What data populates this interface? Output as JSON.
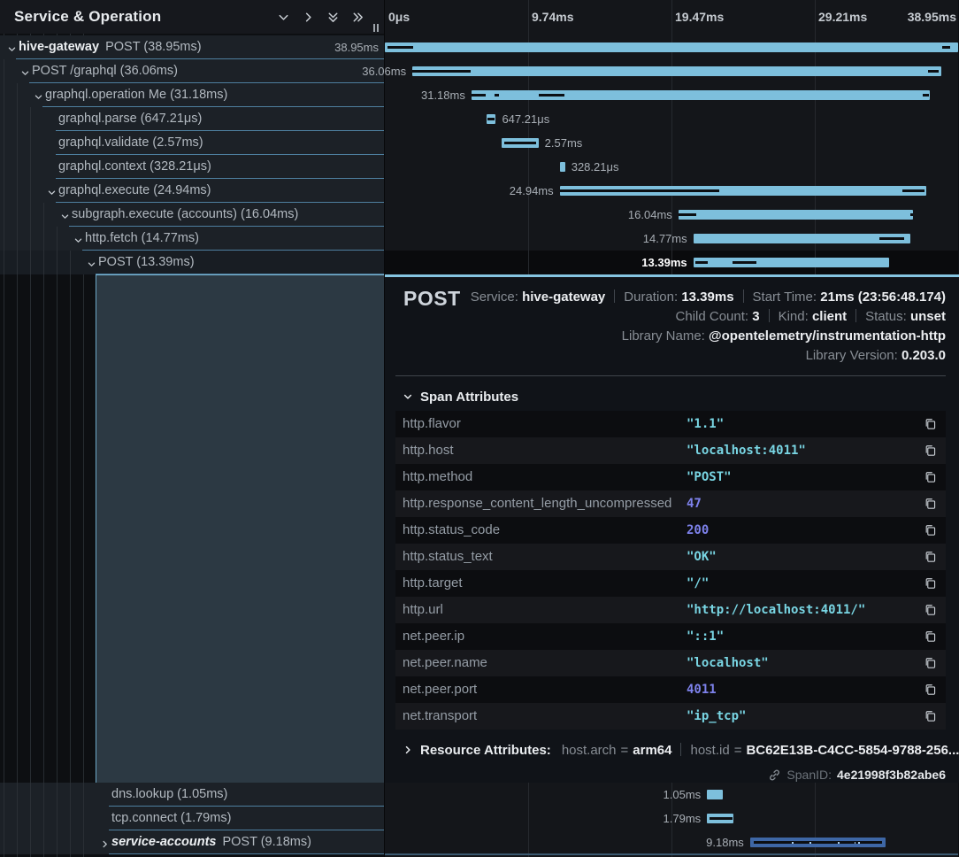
{
  "header": {
    "title": "Service & Operation",
    "icons": [
      "collapse-one-icon",
      "expand-one-icon",
      "collapse-all-icon",
      "expand-all-icon"
    ]
  },
  "timeline": {
    "ticks": [
      {
        "label": "0μs",
        "pos": 0
      },
      {
        "label": "9.74ms",
        "pos": 0.25
      },
      {
        "label": "19.47ms",
        "pos": 0.5
      },
      {
        "label": "29.21ms",
        "pos": 0.75
      },
      {
        "label": "38.95ms",
        "pos": 1
      }
    ]
  },
  "colors": {
    "bar_default": "#7dbfdc",
    "bar_alt_service": "#3e67a6",
    "row_border": "#4e7f9f",
    "panel_accent": "#86c5e1",
    "string_value": "#79d6e4",
    "number_value": "#7e82ec"
  },
  "spans": [
    {
      "service": "hive-gateway",
      "italic": false,
      "label": "POST (38.95ms)",
      "depth": 0,
      "chevron": "down",
      "selected": false,
      "after_detail": false,
      "bar": {
        "start": 0.0,
        "width": 1.0,
        "label": "38.95ms",
        "segments": [
          [
            0.005,
            0.045
          ],
          [
            0.972,
            0.014
          ]
        ]
      }
    },
    {
      "service": null,
      "label": "POST /graphql (36.06ms)",
      "depth": 1,
      "chevron": "down",
      "selected": false,
      "after_detail": false,
      "bar": {
        "start": 0.048,
        "width": 0.922,
        "label": "36.06ms",
        "segments": [
          [
            0.0,
            0.11
          ],
          [
            0.975,
            0.02
          ]
        ]
      }
    },
    {
      "service": null,
      "label": "graphql.operation Me (31.18ms)",
      "depth": 2,
      "chevron": "down",
      "selected": false,
      "after_detail": false,
      "bar": {
        "start": 0.151,
        "width": 0.8,
        "label": "31.18ms",
        "segments": [
          [
            0.0,
            0.032
          ],
          [
            0.05,
            0.01
          ],
          [
            0.147,
            0.055
          ],
          [
            0.985,
            0.012
          ]
        ]
      }
    },
    {
      "service": null,
      "label": "graphql.parse (647.21μs)",
      "depth": 3,
      "chevron": null,
      "selected": false,
      "after_detail": false,
      "bar": {
        "start": 0.177,
        "width": 0.0166,
        "label": "647.21μs",
        "segments": [
          [
            0.15,
            0.7
          ]
        ]
      }
    },
    {
      "service": null,
      "label": "graphql.validate (2.57ms)",
      "depth": 3,
      "chevron": null,
      "selected": false,
      "after_detail": false,
      "bar": {
        "start": 0.204,
        "width": 0.064,
        "label": "2.57ms",
        "segments": [
          [
            0.06,
            0.88
          ]
        ]
      }
    },
    {
      "service": null,
      "label": "graphql.context (328.21μs)",
      "depth": 3,
      "chevron": null,
      "selected": false,
      "after_detail": false,
      "bar": {
        "start": 0.306,
        "width": 0.0084,
        "label": "328.21μs",
        "segments": []
      }
    },
    {
      "service": null,
      "label": "graphql.execute (24.94ms)",
      "depth": 3,
      "chevron": "down",
      "selected": false,
      "after_detail": false,
      "bar": {
        "start": 0.305,
        "width": 0.639,
        "label": "24.94ms",
        "segments": [
          [
            0.0,
            0.435
          ],
          [
            0.935,
            0.06
          ]
        ]
      }
    },
    {
      "service": null,
      "label": "subgraph.execute (accounts) (16.04ms)",
      "depth": 4,
      "chevron": "down",
      "selected": false,
      "after_detail": false,
      "bar": {
        "start": 0.512,
        "width": 0.409,
        "label": "16.04ms",
        "segments": [
          [
            0.0,
            0.075
          ],
          [
            0.99,
            0.01
          ]
        ]
      }
    },
    {
      "service": null,
      "label": "http.fetch (14.77ms)",
      "depth": 5,
      "chevron": "down",
      "selected": false,
      "after_detail": false,
      "bar": {
        "start": 0.538,
        "width": 0.378,
        "label": "14.77ms",
        "segments": [
          [
            0.86,
            0.115
          ]
        ]
      }
    },
    {
      "service": null,
      "label": "POST (13.39ms)",
      "depth": 6,
      "chevron": "down",
      "selected": true,
      "after_detail": false,
      "bar": {
        "start": 0.538,
        "width": 0.341,
        "label": "13.39ms",
        "segments": [
          [
            0.012,
            0.062
          ],
          [
            0.2,
            0.125
          ]
        ]
      }
    },
    {
      "service": null,
      "label": "dns.lookup (1.05ms)",
      "depth": 7,
      "chevron": null,
      "selected": false,
      "after_detail": true,
      "bar": {
        "start": 0.562,
        "width": 0.028,
        "label": "1.05ms",
        "segments": []
      }
    },
    {
      "service": null,
      "label": "tcp.connect (1.79ms)",
      "depth": 7,
      "chevron": null,
      "selected": false,
      "after_detail": true,
      "bar": {
        "start": 0.562,
        "width": 0.046,
        "label": "1.79ms",
        "segments": [
          [
            0.09,
            0.89
          ]
        ]
      }
    },
    {
      "service": "service-accounts",
      "italic": true,
      "label": "POST (9.18ms)",
      "depth": 7,
      "chevron": "right",
      "selected": false,
      "after_detail": true,
      "bar": {
        "start": 0.637,
        "width": 0.236,
        "label": "9.18ms",
        "color": "#3e67a6",
        "segments": [
          [
            0.025,
            0.95
          ]
        ],
        "dots": [
          [
            0.31,
            0.013
          ],
          [
            0.44,
            0.01
          ],
          [
            0.65,
            0.013
          ],
          [
            0.77,
            0.01
          ],
          [
            0.8,
            0.01
          ]
        ]
      }
    }
  ],
  "detail": {
    "title": "POST",
    "meta_lines": [
      [
        {
          "k": "Service:",
          "v": "hive-gateway"
        },
        {
          "k": "Duration:",
          "v": "13.39ms"
        },
        {
          "k": "Start Time:",
          "v": "21ms (23:56:48.174)"
        }
      ],
      [
        {
          "k": "Child Count:",
          "v": "3"
        },
        {
          "k": "Kind:",
          "v": "client"
        },
        {
          "k": "Status:",
          "v": "unset"
        }
      ],
      [
        {
          "k": "Library Name:",
          "v": "@opentelemetry/instrumentation-http"
        }
      ],
      [
        {
          "k": "Library Version:",
          "v": "0.203.0"
        }
      ]
    ],
    "attributes_title": "Span Attributes",
    "attributes": [
      {
        "key": "http.flavor",
        "value": "\"1.1\"",
        "type": "string"
      },
      {
        "key": "http.host",
        "value": "\"localhost:4011\"",
        "type": "string"
      },
      {
        "key": "http.method",
        "value": "\"POST\"",
        "type": "string"
      },
      {
        "key": "http.response_content_length_uncompressed",
        "value": "47",
        "type": "number"
      },
      {
        "key": "http.status_code",
        "value": "200",
        "type": "number"
      },
      {
        "key": "http.status_text",
        "value": "\"OK\"",
        "type": "string"
      },
      {
        "key": "http.target",
        "value": "\"/\"",
        "type": "string"
      },
      {
        "key": "http.url",
        "value": "\"http://localhost:4011/\"",
        "type": "string"
      },
      {
        "key": "net.peer.ip",
        "value": "\"::1\"",
        "type": "string"
      },
      {
        "key": "net.peer.name",
        "value": "\"localhost\"",
        "type": "string"
      },
      {
        "key": "net.peer.port",
        "value": "4011",
        "type": "number"
      },
      {
        "key": "net.transport",
        "value": "\"ip_tcp\"",
        "type": "string"
      }
    ],
    "resource_title": "Resource Attributes:",
    "resource_items": [
      {
        "k": "host.arch",
        "v": "arm64"
      },
      {
        "k": "host.id",
        "v": "BC62E13B-C4CC-5854-9788-256..."
      }
    ],
    "span_id_label": "SpanID:",
    "span_id": "4e21998f3b82abe6"
  }
}
